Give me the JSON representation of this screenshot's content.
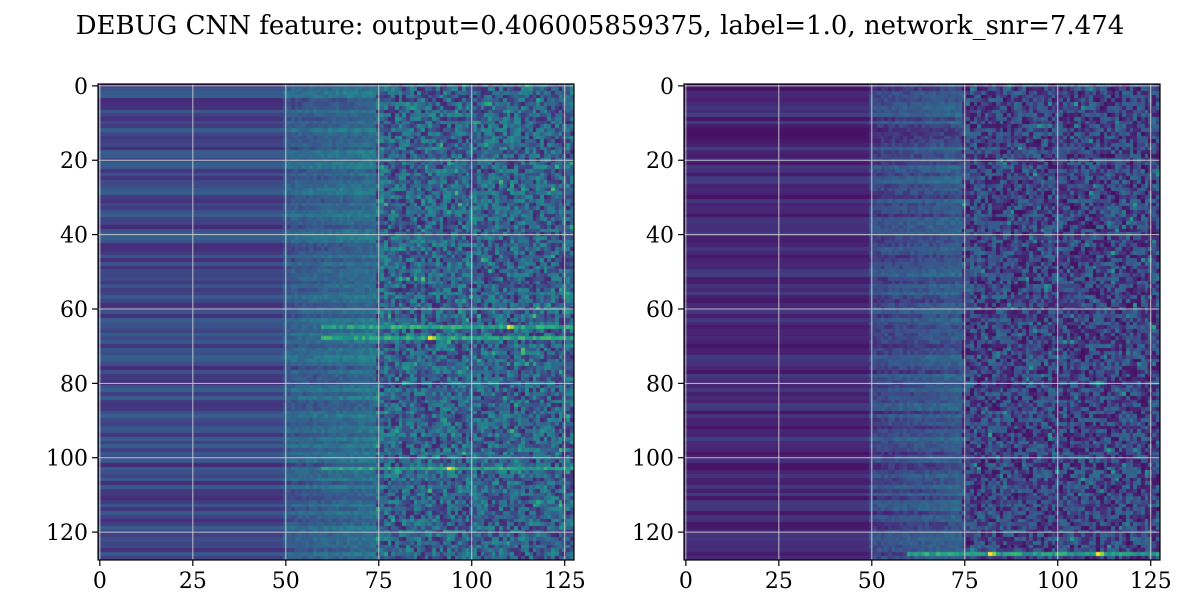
{
  "title": "DEBUG CNN feature: output=0.406005859375, label=1.0, network_snr=7.474",
  "colormap": "viridis",
  "background": "#ffffff",
  "chart_data": [
    {
      "type": "heatmap",
      "shape": [
        128,
        128
      ],
      "xlim": [
        -0.5,
        127.5
      ],
      "ylim": [
        127.5,
        -0.5
      ],
      "xticks": [
        0,
        25,
        50,
        75,
        100,
        125
      ],
      "yticks": [
        0,
        20,
        40,
        60,
        80,
        100,
        120
      ],
      "grid": true,
      "structure": {
        "low_region_cols": [
          0,
          50
        ],
        "mid_region_cols": [
          50,
          75
        ],
        "noisy_region_cols": [
          75,
          127
        ],
        "hot_rows": [
          65,
          68,
          103
        ],
        "hot_spots": [
          {
            "row": 65,
            "col": 110
          },
          {
            "row": 68,
            "col": 89
          },
          {
            "row": 103,
            "col": 94
          }
        ]
      }
    },
    {
      "type": "heatmap",
      "shape": [
        128,
        128
      ],
      "xlim": [
        -0.5,
        127.5
      ],
      "ylim": [
        127.5,
        -0.5
      ],
      "xticks": [
        0,
        25,
        50,
        75,
        100,
        125
      ],
      "yticks": [
        0,
        20,
        40,
        60,
        80,
        100,
        120
      ],
      "grid": true,
      "structure": {
        "low_region_cols": [
          0,
          50
        ],
        "mid_region_cols": [
          50,
          75
        ],
        "noisy_region_cols": [
          75,
          127
        ],
        "hot_rows": [
          126
        ],
        "hot_spots": [
          {
            "row": 126,
            "col": 111
          },
          {
            "row": 126,
            "col": 82
          }
        ]
      }
    }
  ]
}
